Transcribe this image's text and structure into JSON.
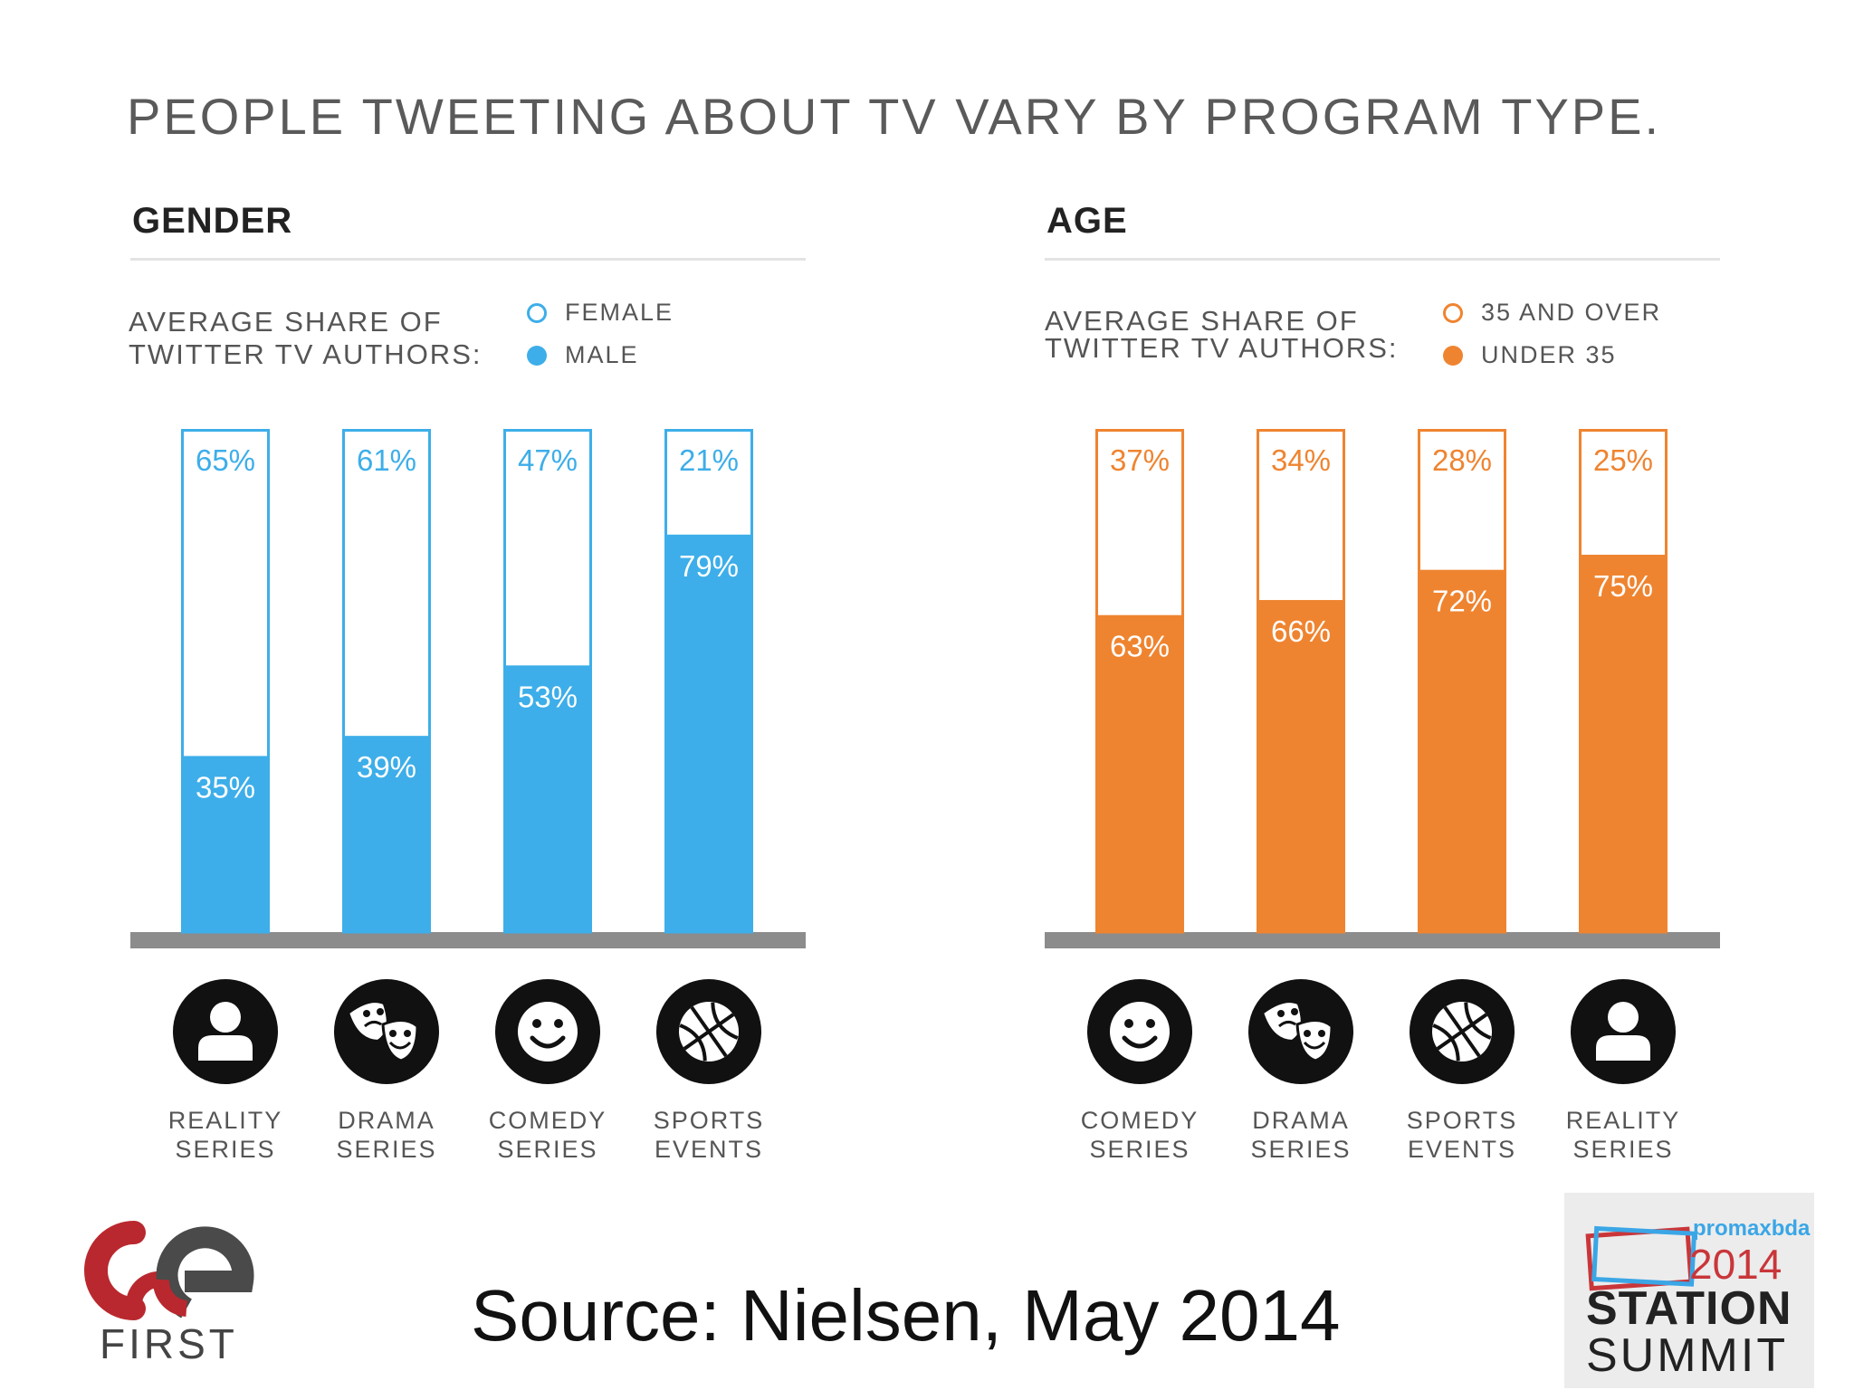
{
  "title": "PEOPLE TWEETING ABOUT TV VARY BY PROGRAM TYPE.",
  "chart_data": [
    {
      "type": "bar",
      "stacked": true,
      "panel_title": "GENDER",
      "share_label": [
        "AVERAGE SHARE OF",
        "TWITTER TV AUTHORS:"
      ],
      "categories": [
        [
          "REALITY",
          "SERIES"
        ],
        [
          "DRAMA",
          "SERIES"
        ],
        [
          "COMEDY",
          "SERIES"
        ],
        [
          "SPORTS",
          "EVENTS"
        ]
      ],
      "icons": [
        "person-icon",
        "theater-masks-icon",
        "smiley-icon",
        "basketball-icon"
      ],
      "series": [
        {
          "name": "MALE",
          "values": [
            35,
            39,
            53,
            79
          ],
          "labels": [
            "35%",
            "39%",
            "53%",
            "79%"
          ],
          "style": "filled"
        },
        {
          "name": "FEMALE",
          "values": [
            65,
            61,
            47,
            21
          ],
          "labels": [
            "65%",
            "61%",
            "47%",
            "21%"
          ],
          "style": "outline"
        }
      ],
      "ylim": [
        0,
        100
      ],
      "color": "#3daee9"
    },
    {
      "type": "bar",
      "stacked": true,
      "panel_title": "AGE",
      "share_label": [
        "AVERAGE SHARE OF",
        "TWITTER TV AUTHORS:"
      ],
      "categories": [
        [
          "COMEDY",
          "SERIES"
        ],
        [
          "DRAMA",
          "SERIES"
        ],
        [
          "SPORTS",
          "EVENTS"
        ],
        [
          "REALITY",
          "SERIES"
        ]
      ],
      "icons": [
        "smiley-icon",
        "theater-masks-icon",
        "basketball-icon",
        "person-icon"
      ],
      "series": [
        {
          "name": "UNDER 35",
          "values": [
            63,
            66,
            72,
            75
          ],
          "labels": [
            "63%",
            "66%",
            "72%",
            "75%"
          ],
          "style": "filled"
        },
        {
          "name": "35 AND OVER",
          "values": [
            37,
            34,
            28,
            25
          ],
          "labels": [
            "37%",
            "34%",
            "28%",
            "25%"
          ],
          "style": "outline"
        }
      ],
      "ylim": [
        0,
        100
      ],
      "color": "#ef8430"
    }
  ],
  "source": "Source: Nielsen, May 2014",
  "logos": {
    "we_first": {
      "text": "FIRST",
      "colors": [
        "#b9282e",
        "#4a4a4a"
      ]
    },
    "station_summit": {
      "line1": "promaxbda",
      "line2": "2014",
      "line3": "STATION",
      "line4": "SUMMIT"
    }
  }
}
